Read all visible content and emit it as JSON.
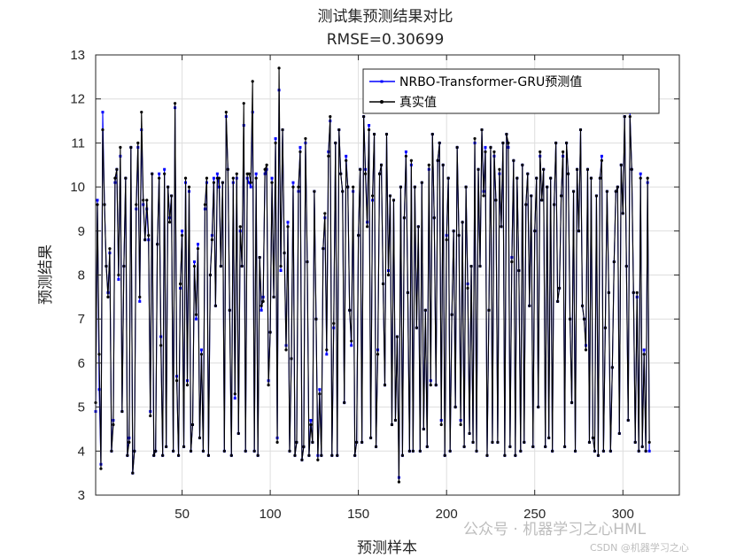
{
  "chart_data": {
    "type": "line",
    "title": "测试集预测结果对比",
    "subtitle": "RMSE=0.30699",
    "xlabel": "预测样本",
    "ylabel": "预测结果",
    "xlim": [
      1,
      332
    ],
    "ylim": [
      3,
      13
    ],
    "xticks": [
      50,
      100,
      150,
      200,
      250,
      300
    ],
    "yticks": [
      3,
      4,
      5,
      6,
      7,
      8,
      9,
      10,
      11,
      12,
      13
    ],
    "grid": true,
    "legend_position": "top-right",
    "series": [
      {
        "name": "NRBO-Transformer-GRU预测值",
        "color": "#0000ff",
        "marker": "square",
        "values": [
          4.9,
          9.7,
          5.4,
          3.7,
          11.7,
          9.6,
          8.2,
          7.6,
          8.5,
          4.0,
          4.7,
          10.1,
          10.4,
          7.9,
          10.7,
          4.9,
          8.2,
          10.2,
          3.9,
          4.3,
          10.9,
          3.5,
          4.0,
          9.5,
          10.9,
          7.4,
          11.3,
          9.6,
          8.8,
          9.5,
          8.8,
          4.9,
          10.3,
          3.9,
          4.0,
          8.7,
          10.3,
          6.6,
          3.9,
          10.4,
          4.1,
          10.0,
          9.3,
          9.8,
          4.0,
          11.8,
          5.7,
          3.9,
          7.7,
          9.0,
          4.1,
          10.1,
          5.6,
          9.9,
          4.0,
          4.6,
          8.3,
          7.0,
          8.7,
          4.3,
          6.3,
          4.0,
          9.5,
          10.1,
          3.9,
          8.0,
          8.9,
          10.2,
          7.3,
          10.3,
          10.0,
          8.2,
          10.1,
          4.0,
          11.6,
          10.4,
          7.2,
          3.9,
          10.1,
          5.2,
          10.2,
          4.4,
          9.0,
          8.2,
          11.4,
          4.0,
          10.2,
          10.1,
          10.0,
          11.7,
          4.0,
          10.3,
          3.9,
          8.4,
          7.2,
          7.5,
          10.3,
          10.4,
          5.6,
          6.7,
          10.2,
          7.5,
          11.1,
          4.3,
          12.2,
          8.1,
          11.3,
          8.5,
          6.4,
          9.2,
          4.0,
          6.1,
          10.1,
          3.9,
          4.2,
          9.9,
          10.9,
          3.8,
          4.1,
          11.0,
          8.3,
          3.9,
          4.7,
          4.2,
          9.9,
          7.0,
          3.9,
          5.4,
          3.9,
          8.6,
          9.3,
          6.2,
          10.8,
          11.5,
          3.9,
          6.8,
          11.0,
          3.9,
          11.3,
          10.3,
          9.9,
          5.1,
          10.7,
          10.0,
          7.2,
          6.4,
          9.9,
          3.9,
          4.2,
          8.9,
          10.4,
          4.2,
          11.6,
          10.4,
          9.2,
          11.4,
          4.3,
          9.7,
          11.2,
          4.1,
          6.3,
          10.3,
          10.5,
          7.8,
          5.5,
          11.2,
          8.1,
          9.8,
          4.6,
          9.7,
          4.7,
          6.6,
          3.4,
          10.0,
          3.9,
          9.3,
          10.8,
          7.6,
          4.0,
          10.5,
          4.0,
          10.0,
          6.8,
          9.1,
          4.0,
          10.1,
          4.5,
          7.2,
          4.1,
          10.4,
          5.6,
          11.2,
          9.3,
          5.5,
          10.6,
          11.0,
          4.7,
          10.5,
          3.9,
          8.9,
          10.2,
          4.0,
          7.1,
          9.0,
          5.0,
          10.9,
          8.9,
          4.7,
          9.2,
          4.1,
          10.0,
          7.8,
          4.4,
          8.2,
          4.2,
          11.0,
          4.0,
          10.4,
          8.2,
          11.3,
          9.9,
          10.9,
          3.9,
          7.2,
          10.9,
          4.2,
          10.7,
          9.7,
          4.2,
          10.3,
          9.1,
          11.0,
          3.9,
          11.2,
          10.9,
          4.1,
          8.4,
          10.6,
          3.9,
          10.2,
          8.1,
          4.0,
          10.5,
          4.2,
          9.6,
          10.3,
          7.3,
          9.8,
          4.1,
          9.0,
          10.2,
          5.0,
          10.7,
          9.7,
          10.4,
          4.1,
          10.0,
          4.3,
          10.2,
          4.0,
          9.6,
          11.0,
          7.4,
          7.7,
          9.8,
          10.7,
          4.1,
          11.0,
          10.3,
          7.0,
          5.1,
          9.9,
          4.0,
          10.4,
          9.0,
          11.3,
          7.3,
          7.0,
          6.4,
          10.4,
          4.2,
          10.2,
          4.3,
          4.0,
          9.8,
          3.9,
          10.2,
          10.7,
          4.0,
          6.8,
          9.9,
          7.6,
          4.0,
          5.9,
          8.3,
          9.9,
          10.0,
          4.4,
          10.5,
          9.4,
          11.6,
          8.2,
          4.7,
          11.7,
          10.4,
          7.6,
          4.2,
          7.5,
          4.0,
          10.3,
          4.1,
          6.3,
          4.0,
          10.1,
          4.0
        ],
        "markers": "square"
      },
      {
        "name": "真实值",
        "color": "#000000",
        "marker": "dot",
        "values": [
          5.1,
          9.6,
          6.2,
          3.6,
          11.3,
          9.6,
          8.2,
          7.5,
          8.6,
          4.0,
          4.6,
          10.2,
          10.4,
          8.0,
          10.9,
          4.9,
          8.2,
          10.2,
          3.9,
          4.2,
          10.9,
          3.5,
          4.0,
          9.6,
          11.0,
          7.5,
          11.7,
          9.7,
          8.8,
          9.7,
          8.9,
          4.8,
          10.3,
          3.9,
          4.0,
          8.7,
          10.2,
          6.4,
          3.9,
          10.3,
          4.1,
          10.0,
          9.2,
          9.8,
          4.0,
          11.9,
          5.6,
          3.9,
          7.8,
          8.9,
          4.1,
          10.2,
          5.5,
          10.0,
          4.0,
          4.6,
          8.2,
          7.1,
          8.6,
          4.3,
          6.2,
          4.0,
          9.6,
          10.2,
          3.9,
          8.0,
          8.8,
          10.1,
          7.3,
          10.2,
          10.2,
          8.2,
          10.1,
          4.0,
          11.7,
          10.4,
          7.2,
          3.9,
          10.2,
          5.3,
          10.3,
          4.4,
          9.1,
          8.2,
          11.9,
          4.0,
          10.3,
          10.3,
          10.1,
          12.4,
          4.0,
          10.2,
          3.9,
          8.4,
          7.3,
          7.4,
          10.4,
          10.5,
          5.5,
          6.7,
          10.1,
          7.5,
          11.0,
          4.2,
          12.7,
          8.2,
          11.3,
          8.5,
          6.3,
          9.1,
          4.0,
          6.1,
          10.0,
          3.9,
          4.2,
          10.0,
          10.8,
          3.8,
          4.1,
          11.1,
          8.3,
          3.9,
          4.6,
          4.2,
          9.9,
          7.0,
          3.8,
          5.3,
          3.9,
          8.6,
          9.4,
          6.3,
          10.7,
          11.6,
          3.9,
          6.9,
          11.0,
          3.9,
          11.3,
          10.3,
          9.9,
          5.1,
          10.6,
          10.0,
          7.2,
          6.5,
          10.0,
          3.9,
          4.2,
          8.9,
          10.4,
          4.2,
          11.6,
          10.3,
          9.1,
          11.3,
          4.3,
          9.8,
          11.2,
          4.1,
          6.2,
          10.3,
          10.5,
          7.8,
          5.5,
          11.2,
          8.0,
          9.8,
          4.6,
          9.7,
          4.7,
          6.6,
          3.3,
          10.0,
          3.9,
          9.3,
          10.7,
          7.6,
          4.0,
          10.6,
          4.0,
          10.0,
          6.8,
          9.1,
          4.0,
          10.1,
          4.5,
          7.2,
          4.1,
          10.5,
          5.5,
          11.2,
          9.3,
          5.5,
          10.6,
          11.0,
          4.6,
          10.5,
          3.9,
          8.8,
          10.2,
          4.0,
          7.1,
          9.0,
          5.0,
          10.9,
          8.9,
          4.6,
          9.2,
          4.1,
          10.0,
          7.7,
          4.4,
          8.2,
          4.2,
          11.1,
          4.0,
          10.4,
          8.2,
          11.3,
          9.8,
          10.8,
          3.9,
          7.2,
          10.9,
          4.2,
          10.8,
          9.7,
          4.2,
          10.4,
          9.1,
          11.0,
          3.9,
          11.2,
          11.0,
          4.1,
          8.3,
          10.6,
          3.9,
          10.2,
          8.1,
          4.0,
          10.5,
          4.2,
          9.6,
          10.3,
          7.3,
          9.8,
          4.1,
          9.0,
          10.2,
          5.0,
          10.8,
          9.7,
          10.4,
          4.1,
          10.0,
          4.3,
          10.2,
          4.0,
          9.6,
          11.0,
          7.4,
          7.7,
          9.8,
          10.8,
          4.1,
          11.0,
          10.3,
          7.0,
          5.1,
          9.9,
          4.0,
          10.4,
          9.0,
          11.3,
          7.3,
          7.0,
          6.3,
          10.4,
          4.2,
          10.2,
          4.3,
          4.0,
          9.8,
          3.9,
          10.2,
          10.6,
          4.0,
          6.8,
          9.9,
          7.6,
          4.0,
          5.9,
          8.3,
          9.9,
          10.0,
          4.4,
          10.5,
          9.4,
          11.6,
          8.2,
          4.7,
          11.6,
          10.4,
          7.6,
          4.2,
          7.6,
          4.0,
          10.2,
          4.1,
          6.2,
          4.0,
          10.2,
          4.2
        ]
      }
    ]
  },
  "watermark": {
    "wechat": "公众号 · 机器学习之心HML",
    "csdn": "CSDN @机器学习之心"
  }
}
